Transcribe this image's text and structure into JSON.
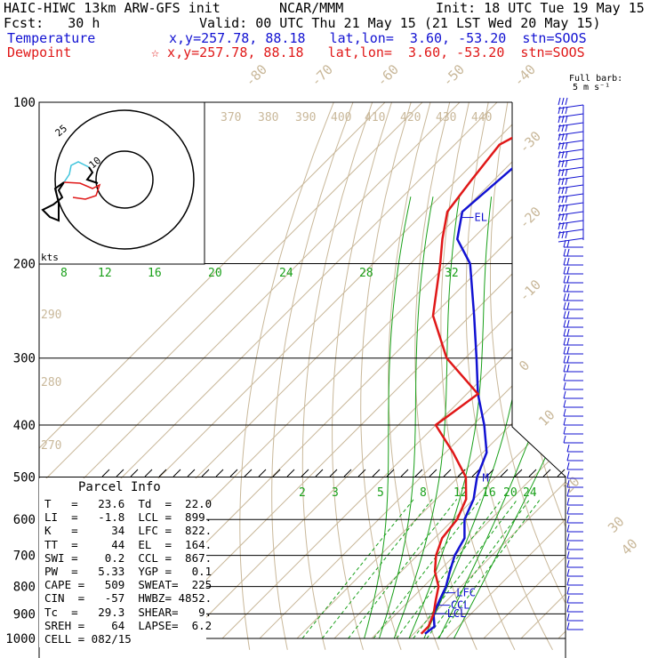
{
  "header": {
    "model": "HAIC-HIWC 13km ARW-GFS init",
    "org": "NCAR/MMM",
    "init": "Init: 18 UTC Tue 19 May 15",
    "fcst": "Fcst:   30 h",
    "valid": "Valid: 00 UTC Thu 21 May 15 (21 LST Wed 20 May 15)",
    "temp_label": "Temperature",
    "temp_loc": "x,y=257.78, 88.18   lat,lon=  3.60, -53.20  stn=SOOS",
    "dew_label": "Dewpoint",
    "dew_loc": "☆ x,y=257.78, 88.18   lat,lon=  3.60, -53.20  stn=SOOS"
  },
  "barb_title": [
    "Full barb:",
    "5 m s⁻¹"
  ],
  "hodograph": {
    "rings": [
      "10",
      "25"
    ],
    "units": "kts"
  },
  "parcel": {
    "title": "Parcel Info",
    "rows": [
      "T   =   23.6  Td  =  22.0",
      "LI  =   -1.8  LCL =  899.",
      "K   =     34  LFC =  822.",
      "TT  =     44  EL  =  164.",
      "SWI =    0.2  CCL =  867.",
      "PW  =   5.33  YGP =   0.1",
      "CAPE =   509  SWEAT=  225",
      "CIN  =   -57  HWBZ= 4852.",
      "Tc  =   29.3  SHEAR=   9.",
      "SREH =    64  LAPSE=  6.2",
      "CELL = 082/15"
    ]
  },
  "chart_data": {
    "type": "line",
    "diagram": "skew-T log-p",
    "pressure_levels": [
      100,
      200,
      300,
      400,
      500,
      600,
      700,
      800,
      900,
      1000
    ],
    "pressure_labels": [
      "100",
      "200",
      "300",
      "400",
      "500",
      "600",
      "700",
      "800",
      "900",
      "1000"
    ],
    "isotherm_labels": [
      "-80",
      "-70",
      "-60",
      "-50",
      "-40",
      "-30",
      "-20",
      "-10",
      "0",
      "10",
      "20",
      "30",
      "40"
    ],
    "theta_labels": [
      "370",
      "380",
      "390",
      "400",
      "410",
      "420",
      "430",
      "440"
    ],
    "theta_lower_labels": [
      "290",
      "280",
      "270"
    ],
    "thetae_labels": [
      "8",
      "12",
      "16",
      "20",
      "24",
      "28",
      "32"
    ],
    "mixing_ratio_labels": [
      "2",
      "3",
      "5",
      "8",
      "12",
      "16",
      "20",
      "24"
    ],
    "series": [
      {
        "name": "Temperature",
        "color": "#1212d2",
        "points": [
          [
            100,
            -78
          ],
          [
            130,
            -78
          ],
          [
            160,
            -80
          ],
          [
            180,
            -74
          ],
          [
            200,
            -64
          ],
          [
            250,
            -49
          ],
          [
            300,
            -37
          ],
          [
            350,
            -27
          ],
          [
            400,
            -17
          ],
          [
            450,
            -9
          ],
          [
            500,
            -5
          ],
          [
            550,
            0
          ],
          [
            600,
            3
          ],
          [
            650,
            8
          ],
          [
            700,
            10
          ],
          [
            750,
            13
          ],
          [
            800,
            16
          ],
          [
            850,
            18
          ],
          [
            900,
            20
          ],
          [
            950,
            23.6
          ],
          [
            980,
            23
          ]
        ]
      },
      {
        "name": "Dewpoint",
        "color": "#e01818",
        "points": [
          [
            100,
            -78
          ],
          [
            120,
            -88
          ],
          [
            140,
            -86
          ],
          [
            160,
            -84
          ],
          [
            180,
            -78
          ],
          [
            200,
            -72
          ],
          [
            250,
            -60
          ],
          [
            300,
            -45
          ],
          [
            350,
            -27
          ],
          [
            400,
            -30
          ],
          [
            450,
            -18
          ],
          [
            500,
            -8
          ],
          [
            550,
            -2
          ],
          [
            600,
            1
          ],
          [
            650,
            2
          ],
          [
            700,
            5
          ],
          [
            750,
            9
          ],
          [
            800,
            14
          ],
          [
            850,
            17
          ],
          [
            900,
            20
          ],
          [
            950,
            22
          ],
          [
            980,
            22
          ]
        ]
      }
    ],
    "level_markers": [
      {
        "label": "EL",
        "p": 164
      },
      {
        "label": "LFC",
        "p": 822
      },
      {
        "label": "CCL",
        "p": 867
      },
      {
        "label": "LCL",
        "p": 899
      },
      {
        "label": "M",
        "p": 500
      }
    ],
    "wind_barbs_color": "#1212d2"
  }
}
